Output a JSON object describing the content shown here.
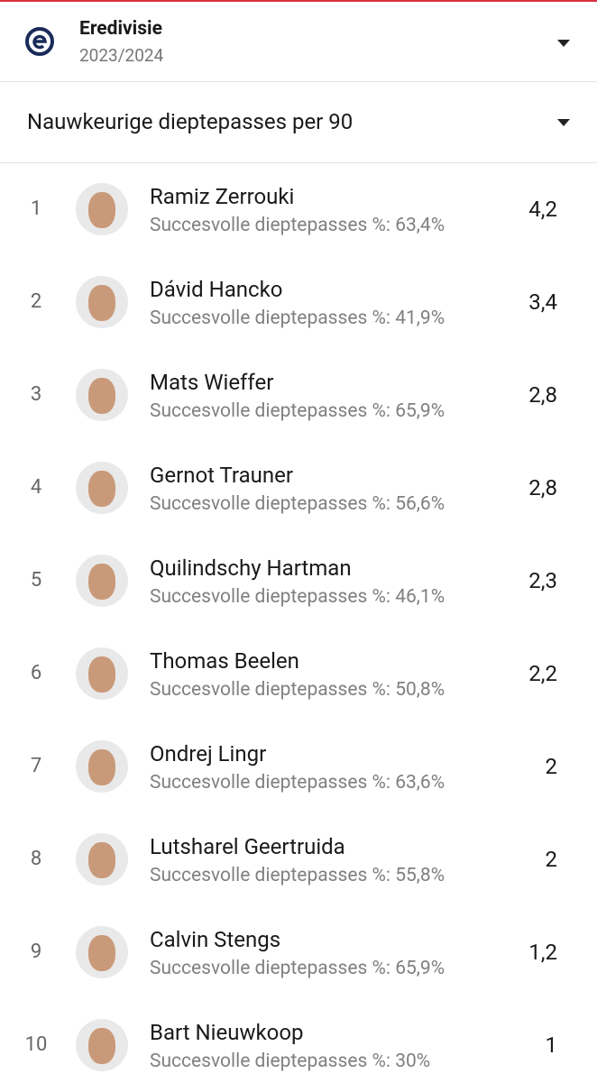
{
  "header": {
    "title": "Eredivisie",
    "season": "2023/2024"
  },
  "stat_selector": "Nauwkeurige dieptepasses per 90",
  "rows": [
    {
      "rank": 1,
      "name": "Ramiz Zerrouki",
      "detail": "Succesvolle dieptepasses %: 63,4%",
      "value": "4,2"
    },
    {
      "rank": 2,
      "name": "Dávid Hancko",
      "detail": "Succesvolle dieptepasses %: 41,9%",
      "value": "3,4"
    },
    {
      "rank": 3,
      "name": "Mats Wieffer",
      "detail": "Succesvolle dieptepasses %: 65,9%",
      "value": "2,8"
    },
    {
      "rank": 4,
      "name": "Gernot Trauner",
      "detail": "Succesvolle dieptepasses %: 56,6%",
      "value": "2,8"
    },
    {
      "rank": 5,
      "name": "Quilindschy Hartman",
      "detail": "Succesvolle dieptepasses %: 46,1%",
      "value": "2,3"
    },
    {
      "rank": 6,
      "name": "Thomas Beelen",
      "detail": "Succesvolle dieptepasses %: 50,8%",
      "value": "2,2"
    },
    {
      "rank": 7,
      "name": "Ondrej Lingr",
      "detail": "Succesvolle dieptepasses %: 63,6%",
      "value": "2"
    },
    {
      "rank": 8,
      "name": "Lutsharel Geertruida",
      "detail": "Succesvolle dieptepasses %: 55,8%",
      "value": "2"
    },
    {
      "rank": 9,
      "name": "Calvin Stengs",
      "detail": "Succesvolle dieptepasses %: 65,9%",
      "value": "1,2"
    },
    {
      "rank": 10,
      "name": "Bart Nieuwkoop",
      "detail": "Succesvolle dieptepasses %: 30%",
      "value": "1"
    }
  ]
}
